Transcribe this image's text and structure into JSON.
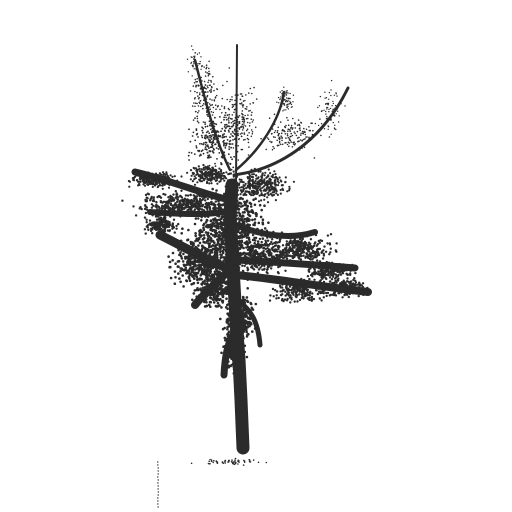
{
  "scene": {
    "subject": "tree",
    "render_style": "point-cloud",
    "background_color": "#ffffff",
    "point_color": "#2b2b2b"
  }
}
